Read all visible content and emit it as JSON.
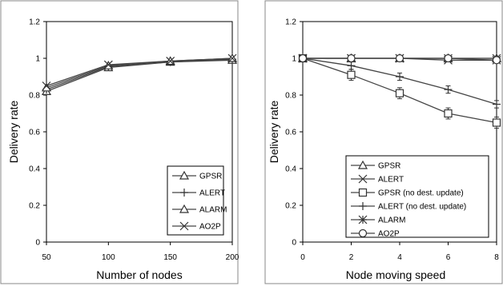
{
  "chart_data": [
    {
      "type": "line",
      "xlabel": "Number of nodes",
      "ylabel": "Delivery rate",
      "xlim": [
        50,
        200
      ],
      "ylim": [
        0,
        1.2
      ],
      "x_ticks": [
        "50",
        "100",
        "150",
        "200"
      ],
      "y_ticks": [
        "0",
        "0.2",
        "0.4",
        "0.6",
        "0.8",
        "1",
        "1.2"
      ],
      "grid": false,
      "legend_position": "bottom-right",
      "x": [
        50,
        100,
        150,
        200
      ],
      "series": [
        {
          "name": "GPSR",
          "marker": "triangle",
          "values": [
            0.82,
            0.95,
            0.98,
            0.99
          ]
        },
        {
          "name": "ALERT",
          "marker": "plus",
          "values": [
            0.83,
            0.955,
            0.98,
            0.995
          ]
        },
        {
          "name": "ALARM",
          "marker": "triangle",
          "values": [
            0.84,
            0.96,
            0.985,
            1.0
          ]
        },
        {
          "name": "AO2P",
          "marker": "x",
          "values": [
            0.85,
            0.965,
            0.985,
            1.0
          ]
        }
      ]
    },
    {
      "type": "line",
      "xlabel": "Node moving speed",
      "ylabel": "Delivery rate",
      "xlim": [
        0,
        8
      ],
      "ylim": [
        0,
        1.2
      ],
      "x_ticks": [
        "0",
        "2",
        "4",
        "6",
        "8"
      ],
      "y_ticks": [
        "0",
        "0.2",
        "0.4",
        "0.6",
        "0.8",
        "1",
        "1.2"
      ],
      "grid": false,
      "legend_position": "bottom-right",
      "x": [
        0,
        2,
        4,
        6,
        8
      ],
      "series": [
        {
          "name": "GPSR",
          "marker": "triangle",
          "values": [
            1.0,
            1.0,
            1.0,
            1.0,
            1.0
          ]
        },
        {
          "name": "ALERT",
          "marker": "x",
          "values": [
            1.0,
            1.0,
            1.0,
            0.99,
            0.99
          ]
        },
        {
          "name": "GPSR (no dest. update)",
          "marker": "square",
          "values": [
            1.0,
            0.91,
            0.81,
            0.7,
            0.65
          ],
          "error": [
            0.01,
            0.03,
            0.03,
            0.03,
            0.03
          ]
        },
        {
          "name": "ALERT (no dest. update)",
          "marker": "plus",
          "values": [
            1.0,
            0.96,
            0.9,
            0.83,
            0.75
          ],
          "error": [
            0.01,
            0.02,
            0.02,
            0.02,
            0.02
          ]
        },
        {
          "name": "ALARM",
          "marker": "asterisk",
          "values": [
            1.0,
            1.0,
            1.0,
            1.0,
            1.0
          ]
        },
        {
          "name": "AO2P",
          "marker": "circle",
          "values": [
            1.0,
            1.0,
            1.0,
            1.0,
            0.99
          ]
        }
      ]
    }
  ]
}
